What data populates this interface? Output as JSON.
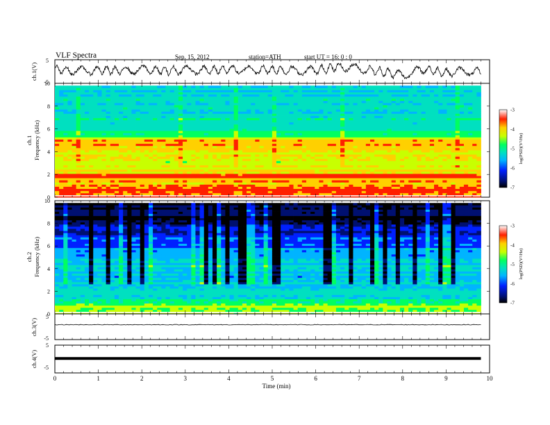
{
  "header": {
    "title": "VLF  Spectra",
    "date": "Sep. 15, 2012",
    "station": "station=ATH",
    "start": "start  UT  =   16: 0   : 0"
  },
  "colors": {
    "spectrum_scale": [
      "#000000",
      "#001070",
      "#0020ff",
      "#00b4ff",
      "#00e0c0",
      "#00ff60",
      "#c8ff00",
      "#ffd000",
      "#ff2000",
      "#ffffff"
    ],
    "trace": "#000000",
    "frame": "#000000"
  },
  "chart_data": [
    {
      "type": "line",
      "panel": "ch1-waveform",
      "ylabel": "ch.1(V)",
      "ylim": [
        -5,
        5
      ],
      "yticks": [
        "5",
        "-5"
      ],
      "xlim": [
        0,
        10
      ],
      "description_series": "waveform",
      "x": [
        0,
        0.5,
        1,
        1.5,
        2,
        2.5,
        3,
        3.5,
        4,
        4.5,
        5,
        5.5,
        6,
        6.5,
        7,
        7.5,
        8,
        8.5,
        9,
        9.5,
        9.8
      ],
      "values": [
        0.8,
        0.2,
        0.6,
        0.4,
        0.9,
        0.3,
        0.7,
        0.5,
        1.0,
        0.6,
        0.8,
        0.4,
        0.5,
        2.0,
        1.2,
        0.0,
        -1.5,
        1.0,
        -0.5,
        0.2,
        -0.5
      ]
    },
    {
      "type": "heatmap",
      "panel": "ch1-spectrogram",
      "ylabel": "ch.1\nFrequency  (kHz)",
      "ylim": [
        0,
        10
      ],
      "yticks": [
        "0",
        "2",
        "4",
        "6",
        "8",
        "10"
      ],
      "xlim": [
        0,
        10
      ],
      "colorbar": {
        "label": "log(PSD)(V²/Hz)",
        "range": [
          -7,
          -3
        ],
        "ticks": [
          "-3",
          "-4",
          "-5",
          "-6",
          "-7"
        ]
      },
      "band_levels_kHz": [
        0.5,
        1.5,
        2.5,
        3.5,
        4.5,
        5.5,
        6.5,
        7.5,
        8.5,
        9.5
      ],
      "band_levels_logPSD": [
        -3.4,
        -3.7,
        -3.9,
        -4.1,
        -3.7,
        -4.6,
        -5.0,
        -5.1,
        -5.1,
        -5.1
      ]
    },
    {
      "type": "heatmap",
      "panel": "ch2-spectrogram",
      "ylabel": "ch.2\nFrequency  (kHz)",
      "ylim": [
        0,
        10
      ],
      "yticks": [
        "0",
        "2",
        "4",
        "6",
        "8",
        "10"
      ],
      "xlim": [
        0,
        10
      ],
      "colorbar": {
        "label": "log(PSD)(V²/Hz)",
        "range": [
          -7,
          -3
        ],
        "ticks": [
          "-3",
          "-4",
          "-5",
          "-6",
          "-7"
        ]
      },
      "band_levels_kHz": [
        0.5,
        1.5,
        2.5,
        3.5,
        4.5,
        5.5,
        6.5,
        7.5,
        8.5,
        9.5
      ],
      "band_levels_logPSD": [
        -4.6,
        -5.0,
        -5.2,
        -5.4,
        -5.2,
        -5.5,
        -5.8,
        -6.2,
        -6.5,
        -6.5
      ]
    },
    {
      "type": "line",
      "panel": "ch3-waveform",
      "ylabel": "ch.3(V)",
      "ylim": [
        -5,
        5
      ],
      "yticks": [
        "5",
        "-5"
      ],
      "xlim": [
        0,
        10
      ],
      "x": [
        0,
        9.8
      ],
      "values": [
        0.8,
        0.8
      ]
    },
    {
      "type": "line",
      "panel": "ch4-waveform",
      "ylabel": "ch.4(V)",
      "ylim": [
        -5,
        5
      ],
      "yticks": [
        "5",
        "-5"
      ],
      "xlim": [
        0,
        10
      ],
      "x": [
        0,
        9.8
      ],
      "values": [
        0.2,
        0.2
      ],
      "xlabel": "Time  (min)",
      "xticks": [
        "0",
        "1",
        "2",
        "3",
        "4",
        "5",
        "6",
        "7",
        "8",
        "9",
        "10"
      ]
    }
  ]
}
